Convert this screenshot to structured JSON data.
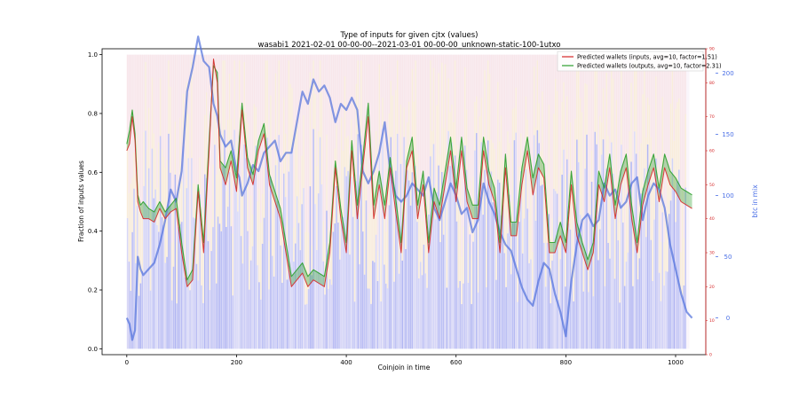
{
  "chart_data": {
    "type": "line",
    "title": "Type of inputs for given cjtx (values)",
    "subtitle": "wasabi1 2021-02-01 00-00-00--2021-03-01 00-00-00_unknown-static-100-1utxo",
    "xlabel": "Coinjoin in time",
    "ylabel_left": "Fraction of inputs values",
    "ylabel_right": "btc in mix",
    "xlim": [
      -45,
      1055
    ],
    "ylim_left": [
      -0.02,
      1.02
    ],
    "ylim_right_mid": [
      -30,
      220
    ],
    "ylim_right_outer": [
      0,
      90
    ],
    "x_ticks": [
      0,
      200,
      400,
      600,
      800,
      1000
    ],
    "y_ticks_left": [
      "0.0",
      "0.2",
      "0.4",
      "0.6",
      "0.8",
      "1.0"
    ],
    "y_ticks_left_values": [
      0.0,
      0.2,
      0.4,
      0.6,
      0.8,
      1.0
    ],
    "y_ticks_right_mid": [
      0,
      50,
      100,
      150,
      200
    ],
    "y_ticks_right_outer": [
      0,
      10,
      20,
      30,
      40,
      50,
      60,
      70,
      80,
      90
    ],
    "legend_position": "top-right",
    "grid": false,
    "series": [
      {
        "name": "Predicted wallets (inputs, avg=10, factor=1.51)",
        "axis": "right_outer",
        "color": "#d62728",
        "x": [
          0,
          5,
          10,
          15,
          20,
          25,
          30,
          40,
          50,
          60,
          70,
          80,
          90,
          100,
          110,
          120,
          130,
          140,
          150,
          158,
          165,
          170,
          180,
          190,
          200,
          205,
          210,
          220,
          230,
          240,
          250,
          260,
          270,
          280,
          290,
          300,
          310,
          320,
          330,
          340,
          350,
          360,
          370,
          380,
          390,
          400,
          410,
          420,
          430,
          440,
          450,
          460,
          470,
          480,
          490,
          500,
          510,
          520,
          530,
          540,
          550,
          560,
          570,
          580,
          590,
          600,
          610,
          620,
          630,
          640,
          650,
          660,
          670,
          680,
          690,
          700,
          710,
          720,
          730,
          740,
          750,
          760,
          770,
          780,
          790,
          800,
          810,
          820,
          830,
          840,
          850,
          860,
          870,
          880,
          890,
          900,
          910,
          920,
          930,
          940,
          950,
          960,
          970,
          980,
          990,
          1000,
          1010,
          1020,
          1030
        ],
        "values": [
          60,
          62,
          70,
          63,
          45,
          42,
          40,
          40,
          39,
          43,
          40,
          42,
          43,
          30,
          20,
          22,
          48,
          30,
          60,
          87,
          80,
          55,
          50,
          57,
          48,
          60,
          72,
          55,
          50,
          60,
          65,
          50,
          45,
          40,
          30,
          20,
          22,
          24,
          20,
          22,
          21,
          20,
          30,
          55,
          40,
          30,
          60,
          40,
          55,
          70,
          40,
          50,
          40,
          55,
          42,
          30,
          55,
          60,
          40,
          50,
          30,
          45,
          40,
          50,
          60,
          45,
          60,
          45,
          40,
          40,
          60,
          50,
          45,
          30,
          55,
          35,
          35,
          50,
          60,
          47,
          55,
          52,
          30,
          30,
          35,
          30,
          50,
          35,
          30,
          25,
          30,
          50,
          45,
          55,
          40,
          50,
          55,
          40,
          30,
          44,
          50,
          55,
          45,
          55,
          50,
          48,
          45,
          44,
          43
        ]
      },
      {
        "name": "Predicted wallets (outputs, avg=10, factor=2.31)",
        "axis": "right_outer",
        "color": "#2ca02c",
        "x": [
          0,
          5,
          10,
          15,
          20,
          25,
          30,
          40,
          50,
          60,
          70,
          80,
          90,
          100,
          110,
          120,
          130,
          140,
          150,
          158,
          165,
          170,
          180,
          190,
          200,
          205,
          210,
          220,
          230,
          240,
          250,
          260,
          270,
          280,
          290,
          300,
          310,
          320,
          330,
          340,
          350,
          360,
          370,
          380,
          390,
          400,
          410,
          420,
          430,
          440,
          450,
          460,
          470,
          480,
          490,
          500,
          510,
          520,
          530,
          540,
          550,
          560,
          570,
          580,
          590,
          600,
          610,
          620,
          630,
          640,
          650,
          660,
          670,
          680,
          690,
          700,
          710,
          720,
          730,
          740,
          750,
          760,
          770,
          780,
          790,
          800,
          810,
          820,
          830,
          840,
          850,
          860,
          870,
          880,
          890,
          900,
          910,
          920,
          930,
          940,
          950,
          960,
          970,
          980,
          990,
          1000,
          1010,
          1020,
          1030
        ],
        "values": [
          62,
          66,
          72,
          65,
          47,
          44,
          45,
          43,
          42,
          45,
          42,
          44,
          46,
          33,
          22,
          25,
          50,
          33,
          63,
          85,
          83,
          57,
          55,
          60,
          52,
          63,
          74,
          58,
          53,
          63,
          68,
          53,
          48,
          43,
          33,
          23,
          25,
          27,
          23,
          25,
          24,
          23,
          33,
          57,
          43,
          33,
          63,
          44,
          58,
          74,
          44,
          54,
          44,
          58,
          46,
          33,
          57,
          64,
          44,
          54,
          33,
          49,
          44,
          54,
          64,
          49,
          64,
          49,
          44,
          44,
          64,
          54,
          49,
          33,
          59,
          39,
          39,
          55,
          64,
          52,
          59,
          56,
          33,
          33,
          39,
          33,
          54,
          39,
          33,
          28,
          33,
          54,
          49,
          59,
          44,
          54,
          59,
          44,
          33,
          48,
          54,
          59,
          49,
          59,
          54,
          52,
          49,
          48,
          47
        ]
      },
      {
        "name": "btc in mix",
        "axis": "right_mid",
        "color": "#4f6fdc",
        "x": [
          0,
          5,
          10,
          15,
          20,
          25,
          30,
          40,
          50,
          60,
          70,
          80,
          90,
          100,
          110,
          120,
          130,
          140,
          150,
          158,
          165,
          170,
          180,
          190,
          200,
          205,
          210,
          220,
          230,
          240,
          250,
          260,
          270,
          280,
          290,
          300,
          310,
          320,
          330,
          340,
          350,
          360,
          370,
          380,
          390,
          400,
          410,
          420,
          430,
          440,
          450,
          460,
          470,
          480,
          490,
          500,
          510,
          520,
          530,
          540,
          550,
          560,
          570,
          580,
          590,
          600,
          610,
          620,
          630,
          640,
          650,
          660,
          670,
          680,
          690,
          700,
          710,
          720,
          730,
          740,
          750,
          760,
          770,
          780,
          790,
          800,
          810,
          820,
          830,
          840,
          850,
          860,
          870,
          880,
          890,
          900,
          910,
          920,
          930,
          940,
          950,
          960,
          970,
          980,
          990,
          1000,
          1010,
          1020,
          1030
        ],
        "values": [
          0,
          -5,
          -18,
          -10,
          50,
          40,
          35,
          40,
          45,
          60,
          80,
          105,
          95,
          120,
          185,
          205,
          230,
          210,
          205,
          175,
          165,
          150,
          140,
          145,
          120,
          115,
          100,
          110,
          125,
          120,
          135,
          140,
          145,
          128,
          135,
          135,
          160,
          185,
          175,
          195,
          185,
          190,
          180,
          160,
          175,
          170,
          180,
          170,
          120,
          110,
          120,
          135,
          160,
          120,
          100,
          95,
          100,
          110,
          105,
          100,
          115,
          90,
          80,
          95,
          110,
          100,
          85,
          90,
          70,
          80,
          110,
          95,
          85,
          70,
          60,
          55,
          40,
          25,
          15,
          10,
          30,
          45,
          40,
          20,
          5,
          -15,
          30,
          60,
          80,
          85,
          75,
          80,
          110,
          100,
          105,
          90,
          95,
          110,
          115,
          80,
          100,
          110,
          105,
          90,
          60,
          40,
          20,
          5,
          0
        ]
      }
    ]
  }
}
